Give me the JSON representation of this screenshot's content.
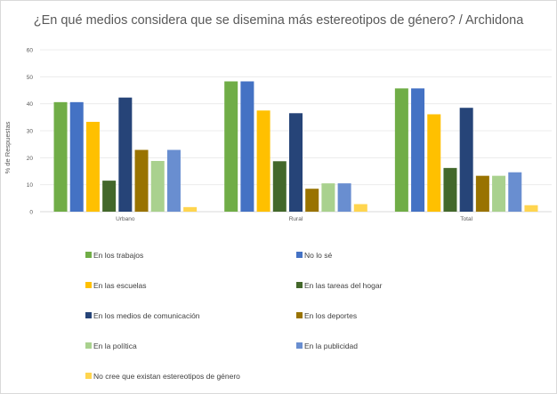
{
  "chart_data": {
    "type": "bar",
    "title": "¿En qué medios considera que se disemina más estereotipos de género? / Archidona",
    "ylabel": "% de Respuestas",
    "xlabel": "",
    "ylim": [
      0,
      60
    ],
    "yticks": [
      0,
      10,
      20,
      30,
      40,
      50,
      60
    ],
    "grid": true,
    "legend_position": "bottom",
    "categories": [
      "Urbano",
      "Rural",
      "Total"
    ],
    "series": [
      {
        "name": "En los trabajos",
        "color": "#70ad47",
        "values": [
          40.6,
          48.3,
          45.7
        ]
      },
      {
        "name": "No lo sé",
        "color": "#4472c4",
        "values": [
          40.6,
          48.3,
          45.7
        ]
      },
      {
        "name": "En las escuelas",
        "color": "#ffc000",
        "values": [
          33.3,
          37.5,
          36.1
        ]
      },
      {
        "name": "En las tareas del hogar",
        "color": "#43682b",
        "values": [
          11.5,
          18.7,
          16.2
        ]
      },
      {
        "name": "En los medios de comunicación",
        "color": "#264478",
        "values": [
          42.3,
          36.5,
          38.5
        ]
      },
      {
        "name": "En los deportes",
        "color": "#997300",
        "values": [
          22.9,
          8.5,
          13.3
        ]
      },
      {
        "name": "En la política",
        "color": "#a9d18e",
        "values": [
          18.8,
          10.5,
          13.3
        ]
      },
      {
        "name": "En la publicidad",
        "color": "#698ed0",
        "values": [
          22.9,
          10.5,
          14.6
        ]
      },
      {
        "name": "No cree que existan estereotipos de género",
        "color": "#ffd54f",
        "values": [
          1.7,
          2.8,
          2.4
        ]
      }
    ]
  }
}
